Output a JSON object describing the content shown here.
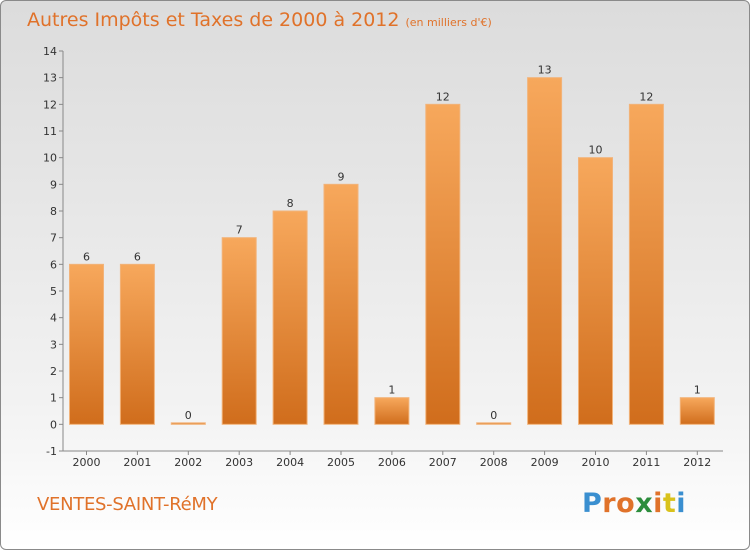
{
  "header": {
    "title": "Autres Impôts et Taxes de 2000 à 2012",
    "unit": "(en milliers d'€)"
  },
  "footer": {
    "commune": "VENTES-SAINT-RéMY",
    "logo": "Proxiti"
  },
  "colors": {
    "accent": "#e0722a",
    "bar_light": "#f7a85c",
    "bar_dark": "#d06d1c",
    "logo_letters": [
      "#3a8fd0",
      "#e0722a",
      "#e0722a",
      "#2c8d3c",
      "#e0722a",
      "#d9c21c",
      "#3a8fd0"
    ]
  },
  "chart_data": {
    "type": "bar",
    "title": "Autres Impôts et Taxes de 2000 à 2012",
    "subtitle": "(en milliers d'€)",
    "categories": [
      "2000",
      "2001",
      "2002",
      "2003",
      "2004",
      "2005",
      "2006",
      "2007",
      "2008",
      "2009",
      "2010",
      "2011",
      "2012"
    ],
    "values": [
      6,
      6,
      0,
      7,
      8,
      9,
      1,
      12,
      0,
      13,
      10,
      12,
      1
    ],
    "value_labels": [
      "6",
      "6",
      "0",
      "7",
      "8",
      "9",
      "1",
      "12",
      "0",
      "13",
      "10",
      "12",
      "1"
    ],
    "ylim": [
      -1,
      14
    ],
    "yticks": [
      "-1",
      "0",
      "1",
      "2",
      "3",
      "4",
      "5",
      "6",
      "7",
      "8",
      "9",
      "10",
      "11",
      "12",
      "13",
      "14"
    ],
    "ytick_values": [
      -1,
      0,
      1,
      2,
      3,
      4,
      5,
      6,
      7,
      8,
      9,
      10,
      11,
      12,
      13,
      14
    ],
    "grid": false,
    "legend": "none"
  }
}
